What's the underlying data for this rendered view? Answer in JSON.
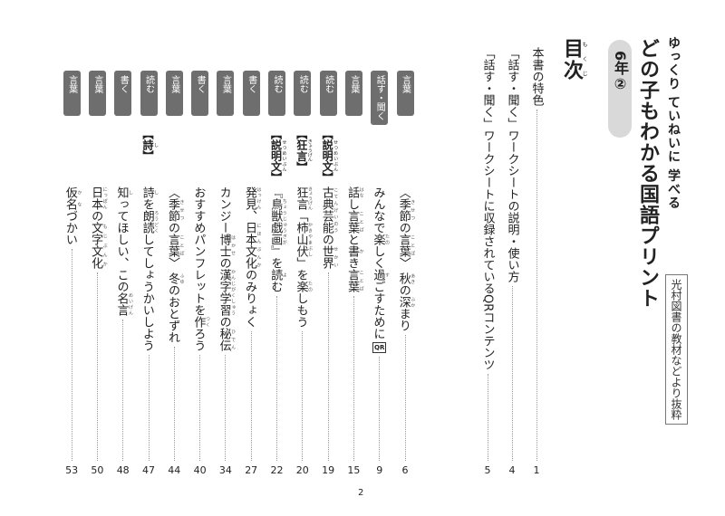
{
  "series_title": "ゆっくり ていねいに 学べる",
  "main_title": "どの子もわかる国語プリント",
  "grade_label": "6年②",
  "source_note": "光村図書の教材などより抜粋",
  "toc_heading": {
    "text": "目次",
    "ruby": "もくじ"
  },
  "front_items": [
    {
      "title": "本書の特色",
      "page": "1"
    },
    {
      "title": "「話す・聞く」ワークシートの説明・使い方",
      "page": "4"
    },
    {
      "title": "「話す・聞く」ワークシートに収録されているQRコンテンツ",
      "page": "5"
    }
  ],
  "entries": [
    {
      "tag": "言葉",
      "genre": null,
      "title": [
        [
          "〈"
        ],
        [
          "季節",
          "きせつ"
        ],
        [
          "の"
        ],
        [
          "言葉",
          "ことば"
        ],
        [
          "〉 "
        ],
        [
          "秋",
          "あき"
        ],
        [
          "の"
        ],
        [
          "深",
          "ふか"
        ],
        [
          "まり"
        ]
      ],
      "page": "6"
    },
    {
      "tag": "話す・聞く",
      "genre": null,
      "title": [
        [
          "みんなで"
        ],
        [
          "楽",
          "たの"
        ],
        [
          "しく"
        ],
        [
          "過",
          "す"
        ],
        [
          "ごすために"
        ]
      ],
      "qr": "QR",
      "page": "9"
    },
    {
      "tag": "言葉",
      "genre": null,
      "title": [
        [
          "話",
          "はな"
        ],
        [
          "し"
        ],
        [
          "言葉",
          "ことば"
        ],
        [
          "と"
        ],
        [
          "書",
          "か"
        ],
        [
          "き"
        ],
        [
          "言葉",
          "ことば"
        ]
      ],
      "page": "15"
    },
    {
      "tag": "読む",
      "genre": [
        [
          "【"
        ],
        [
          "説明文",
          "せつめいぶん"
        ],
        [
          "】"
        ]
      ],
      "title": [
        [
          "古典芸能",
          "こてんげいのう"
        ],
        [
          "の"
        ],
        [
          "世界",
          "せかい"
        ]
      ],
      "page": "19"
    },
    {
      "tag": "読む",
      "genre": [
        [
          "【"
        ],
        [
          "狂言",
          "きょうげん"
        ],
        [
          "】"
        ]
      ],
      "title": [
        [
          "狂言",
          "きょうげん"
        ],
        [
          "「"
        ],
        [
          "柿山伏",
          "かきやまぶし"
        ],
        [
          "」を"
        ],
        [
          "楽",
          "たの"
        ],
        [
          "しもう"
        ]
      ],
      "page": "20"
    },
    {
      "tag": "読む",
      "genre": [
        [
          "【"
        ],
        [
          "説明文",
          "せつめいぶん"
        ],
        [
          "】"
        ]
      ],
      "title": [
        [
          "『"
        ],
        [
          "鳥獣戯画",
          "ちょうじゅうぎが"
        ],
        [
          "』を"
        ],
        [
          "読",
          "よ"
        ],
        [
          "む"
        ]
      ],
      "page": "22"
    },
    {
      "tag": "書く",
      "genre": null,
      "title": [
        [
          "発見",
          "はっけん"
        ],
        [
          "、"
        ],
        [
          "日本文化",
          "にほんぶんか"
        ],
        [
          "のみりょく"
        ]
      ],
      "page": "27"
    },
    {
      "tag": "言葉",
      "genre": null,
      "title": [
        [
          "カンジー"
        ],
        [
          "博士",
          "はかせ"
        ],
        [
          "の"
        ],
        [
          "漢字学習",
          "かんじがくしゅう"
        ],
        [
          "の"
        ],
        [
          "秘伝",
          "ひでん"
        ]
      ],
      "page": "34"
    },
    {
      "tag": "書く",
      "genre": null,
      "title": [
        [
          "おすすめパンフレットを"
        ],
        [
          "作",
          "つく"
        ],
        [
          "ろう"
        ]
      ],
      "page": "40"
    },
    {
      "tag": "言葉",
      "genre": null,
      "title": [
        [
          "〈"
        ],
        [
          "季節",
          "きせつ"
        ],
        [
          "の"
        ],
        [
          "言葉",
          "ことば"
        ],
        [
          "〉 "
        ],
        [
          "冬",
          "ふゆ"
        ],
        [
          "のおとずれ"
        ]
      ],
      "page": "44"
    },
    {
      "tag": "読む",
      "genre": [
        [
          "【"
        ],
        [
          "詩",
          "し"
        ],
        [
          "】"
        ]
      ],
      "title": [
        [
          "詩",
          "し"
        ],
        [
          "を"
        ],
        [
          "朗読",
          "ろうどく"
        ],
        [
          "してしょうかいしよう"
        ]
      ],
      "page": "47"
    },
    {
      "tag": "書く",
      "genre": null,
      "title": [
        [
          "知",
          "し"
        ],
        [
          "ってほしい、この"
        ],
        [
          "名言",
          "めいげん"
        ]
      ],
      "page": "48"
    },
    {
      "tag": "言葉",
      "genre": null,
      "title": [
        [
          "日本",
          "にっぽん"
        ],
        [
          "の"
        ],
        [
          "文字文化",
          "もじぶんか"
        ]
      ],
      "page": "50"
    },
    {
      "tag": "言葉",
      "genre": null,
      "title": [
        [
          "仮名",
          "かな"
        ],
        [
          "づかい"
        ]
      ],
      "page": "53"
    }
  ],
  "page_number": "2",
  "colors": {
    "tag_bg": "#6e6e6e",
    "grade_bg": "#d9d9d9"
  }
}
